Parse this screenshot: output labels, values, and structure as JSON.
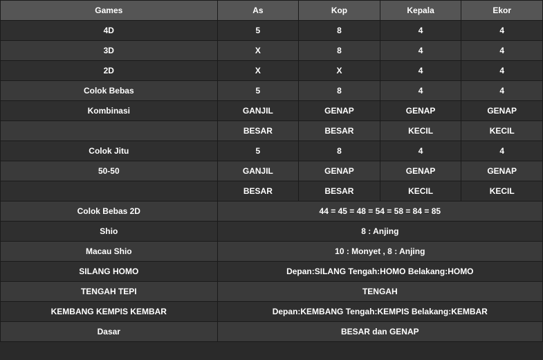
{
  "colors": {
    "header_bg": "#555555",
    "row_odd_bg": "#2f2f2f",
    "row_even_bg": "#3a3a3a",
    "border": "#1a1a1a",
    "text": "#ffffff",
    "page_bg": "#2a2a2a"
  },
  "fontsize": {
    "header": 12,
    "cell": 12
  },
  "columns": [
    "Games",
    "As",
    "Kop",
    "Kepala",
    "Ekor"
  ],
  "rows": [
    {
      "label": "4D",
      "cells": [
        "5",
        "8",
        "4",
        "4"
      ]
    },
    {
      "label": "3D",
      "cells": [
        "X",
        "8",
        "4",
        "4"
      ]
    },
    {
      "label": "2D",
      "cells": [
        "X",
        "X",
        "4",
        "4"
      ]
    },
    {
      "label": "Colok Bebas",
      "cells": [
        "5",
        "8",
        "4",
        "4"
      ]
    },
    {
      "label": "Kombinasi",
      "cells": [
        "GANJIL",
        "GENAP",
        "GENAP",
        "GENAP"
      ]
    },
    {
      "label": "",
      "cells": [
        "BESAR",
        "BESAR",
        "KECIL",
        "KECIL"
      ]
    },
    {
      "label": "Colok Jitu",
      "cells": [
        "5",
        "8",
        "4",
        "4"
      ]
    },
    {
      "label": "50-50",
      "cells": [
        "GANJIL",
        "GENAP",
        "GENAP",
        "GENAP"
      ]
    },
    {
      "label": "",
      "cells": [
        "BESAR",
        "BESAR",
        "KECIL",
        "KECIL"
      ]
    },
    {
      "label": "Colok Bebas 2D",
      "merged": "44 = 45 = 48 = 54 = 58 = 84 = 85"
    },
    {
      "label": "Shio",
      "merged": "8 : Anjing"
    },
    {
      "label": "Macau Shio",
      "merged": "10 : Monyet , 8 : Anjing"
    },
    {
      "label": "SILANG HOMO",
      "merged": "Depan:SILANG Tengah:HOMO Belakang:HOMO"
    },
    {
      "label": "TENGAH TEPI",
      "merged": "TENGAH"
    },
    {
      "label": "KEMBANG KEMPIS KEMBAR",
      "merged": "Depan:KEMBANG Tengah:KEMPIS Belakang:KEMBAR"
    },
    {
      "label": "Dasar",
      "merged": "BESAR dan GENAP"
    }
  ]
}
